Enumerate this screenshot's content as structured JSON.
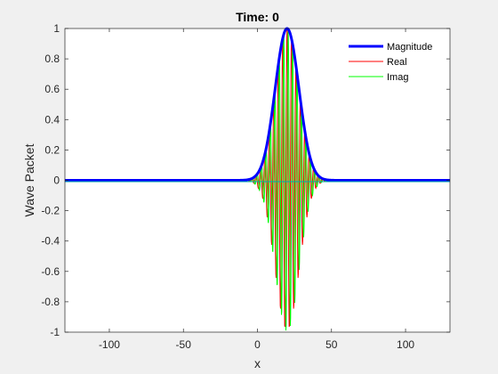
{
  "chart_data": {
    "type": "line",
    "title": "Time: 0",
    "xlabel": "x",
    "ylabel": "Wave Packet",
    "xlim": [
      -130,
      130
    ],
    "ylim": [
      -1,
      1
    ],
    "xticks": [
      -100,
      -50,
      0,
      50,
      100
    ],
    "yticks": [
      -1,
      -0.8,
      -0.6,
      -0.4,
      -0.2,
      0,
      0.2,
      0.4,
      0.6,
      0.8,
      1
    ],
    "grid": false,
    "legend_position": "top-right",
    "packet": {
      "center": 20,
      "sigma": 8,
      "wavenumber": 1.0
    },
    "series": [
      {
        "name": "Magnitude",
        "color": "#0000ff",
        "values_desc": "gaussian envelope peaking at 1 near x=20"
      },
      {
        "name": "Real",
        "color": "#ff0000",
        "values_desc": "oscillating cosine under envelope"
      },
      {
        "name": "Imag",
        "color": "#00ff00",
        "values_desc": "oscillating sine under envelope"
      }
    ]
  }
}
